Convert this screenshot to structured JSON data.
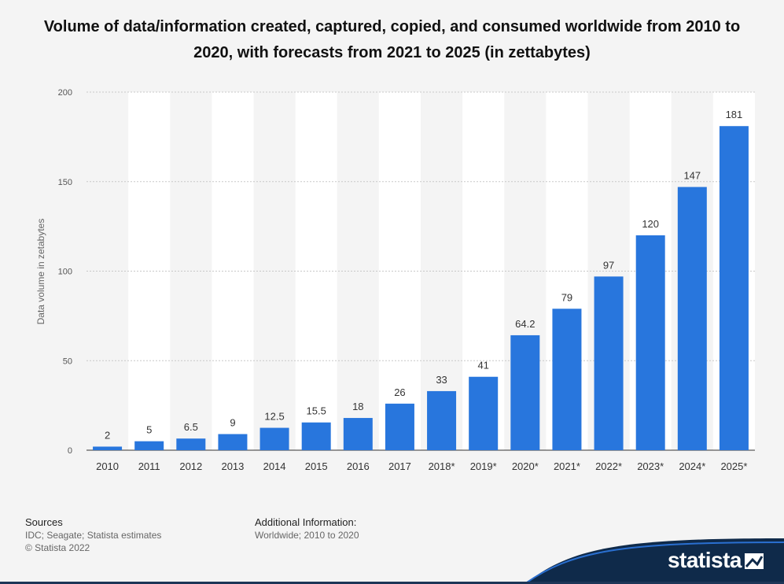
{
  "title": "Volume of data/information created, captured, copied, and consumed worldwide from 2010 to 2020, with forecasts from 2021 to 2025 (in zettabytes)",
  "chart_data": {
    "type": "bar",
    "title": "Volume of data/information created, captured, copied, and consumed worldwide from 2010 to 2020, with forecasts from 2021 to 2025 (in zettabytes)",
    "xlabel": "",
    "ylabel": "Data volume in zetabytes",
    "categories": [
      "2010",
      "2011",
      "2012",
      "2013",
      "2014",
      "2015",
      "2016",
      "2017",
      "2018*",
      "2019*",
      "2020*",
      "2021*",
      "2022*",
      "2023*",
      "2024*",
      "2025*"
    ],
    "values": [
      2,
      5,
      6.5,
      9,
      12.5,
      15.5,
      18,
      26,
      33,
      41,
      64.2,
      79,
      97,
      120,
      147,
      181
    ],
    "value_labels": [
      "2",
      "5",
      "6.5",
      "9",
      "12.5",
      "15.5",
      "18",
      "26",
      "33",
      "41",
      "64.2",
      "79",
      "97",
      "120",
      "147",
      "181"
    ],
    "ylim": [
      0,
      200
    ],
    "yticks": [
      0,
      50,
      100,
      150,
      200
    ],
    "grid": true,
    "colors": {
      "bar": "#2876dd",
      "band": "#ffffff",
      "grid": "#c8c8c8"
    }
  },
  "footer": {
    "sources_heading": "Sources",
    "sources_text": "IDC; Seagate; Statista estimates",
    "copyright": "© Statista 2022",
    "additional_heading": "Additional Information:",
    "additional_text": "Worldwide; 2010 to 2020"
  },
  "brand": {
    "name": "statista",
    "color": "#0f2a4a"
  }
}
